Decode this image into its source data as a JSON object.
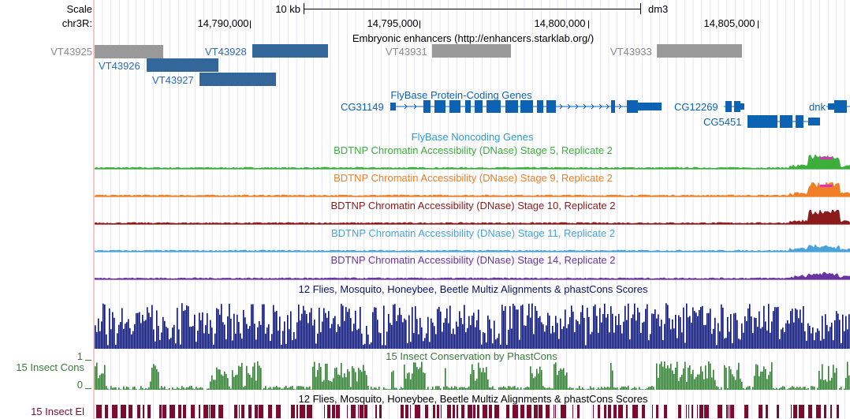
{
  "ruler": {
    "scale_label": "Scale",
    "chrom_label": "chr3R:",
    "scalebar_label": "10 kb",
    "assembly": "dm3",
    "positions": [
      "14,790,000",
      "14,795,000",
      "14,800,000",
      "14,805,000"
    ]
  },
  "enhancers": {
    "title": "Embryonic enhancers (http://enhancers.starklab.org/)",
    "items": [
      "VT43925",
      "VT43926",
      "VT43927",
      "VT43928",
      "VT43931",
      "VT43933"
    ],
    "colors": {
      "strong": "#336699",
      "weak": "#999999"
    }
  },
  "genes": {
    "title": "FlyBase Protein-Coding Genes",
    "items": [
      "CG31149",
      "CG12269",
      "CG5451",
      "dnk"
    ],
    "color": "#0c63b4"
  },
  "noncoding": {
    "title": "FlyBase Noncoding Genes"
  },
  "dnase": [
    {
      "title": "BDTNP Chromatin Accessibility (DNase) Stage 5, Replicate 2",
      "color": "#3cae3c"
    },
    {
      "title": "BDTNP Chromatin Accessibility (DNase) Stage 9, Replicate 2",
      "color": "#f07e26"
    },
    {
      "title": "BDTNP Chromatin Accessibility (DNase) Stage 10, Replicate 2",
      "color": "#8b1a1a"
    },
    {
      "title": "BDTNP Chromatin Accessibility (DNase) Stage 11, Replicate 2",
      "color": "#4aa3d8"
    },
    {
      "title": "BDTNP Chromatin Accessibility (DNase) Stage 14, Replicate 2",
      "color": "#6a34a0"
    }
  ],
  "multiz": {
    "title": "12 Flies, Mosquito, Honeybee, Beetle Multiz Alignments & phastCons Scores",
    "color": "#0b1466"
  },
  "cons": {
    "title": "15 Insect Conservation by PhastCons",
    "side_label": "15 Insect Cons",
    "tick_high": "1",
    "tick_low": "0",
    "color": "#3a7a3a"
  },
  "elements": {
    "title": "12 Flies, Mosquito, Honeybee, Beetle Multiz Alignments & phastCons Scores",
    "side_label": "15 Insect El",
    "color": "#7d0b2e"
  }
}
